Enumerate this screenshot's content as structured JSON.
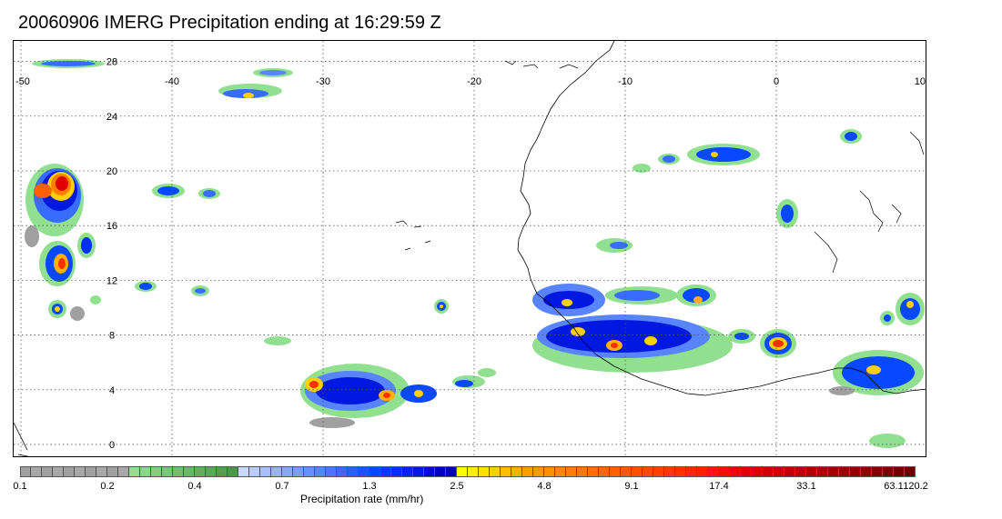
{
  "title": "20060906 IMERG Precipitation ending at 16:29:59 Z",
  "map": {
    "lon_range": [
      -50,
      10
    ],
    "lat_range": [
      -1,
      29.5
    ],
    "lon_ticks": [
      {
        "value": -50,
        "label": "-50"
      },
      {
        "value": -40,
        "label": "-40"
      },
      {
        "value": -30,
        "label": "-30"
      },
      {
        "value": -20,
        "label": "-20"
      },
      {
        "value": -10,
        "label": "-10"
      },
      {
        "value": 0,
        "label": "0"
      },
      {
        "value": 10,
        "label": "10"
      }
    ],
    "lat_ticks": [
      {
        "value": 0,
        "label": "0"
      },
      {
        "value": 4,
        "label": "4"
      },
      {
        "value": 8,
        "label": "8"
      },
      {
        "value": 12,
        "label": "12"
      },
      {
        "value": 16,
        "label": "16"
      },
      {
        "value": 20,
        "label": "20"
      },
      {
        "value": 24,
        "label": "24"
      },
      {
        "value": 28,
        "label": "28"
      }
    ],
    "grid": true,
    "coastline_color": "#000000",
    "grid_color": "#555555"
  },
  "colorbar": {
    "title": "Precipitation rate (mm/hr)",
    "colors": [
      "#a0a0a0",
      "#a8a8a8",
      "#a0a0a0",
      "#a8a8a8",
      "#a0a0a0",
      "#a8a8a8",
      "#a0a0a0",
      "#a8a8a8",
      "#a0a0a0",
      "#a8a8a8",
      "#90e090",
      "#88d888",
      "#80d080",
      "#78c878",
      "#70c070",
      "#68b868",
      "#60b060",
      "#58a858",
      "#50a050",
      "#489848",
      "#c8d8ff",
      "#b8ccff",
      "#a8c0ff",
      "#98b4ff",
      "#88a8ff",
      "#789cff",
      "#6890ff",
      "#5884ff",
      "#4878ff",
      "#386cff",
      "#2860ff",
      "#1854ff",
      "#0848ff",
      "#003cff",
      "#0030ff",
      "#0024f0",
      "#0018e0",
      "#000cd0",
      "#0000c0",
      "#0000b0",
      "#ffff00",
      "#fff000",
      "#ffe000",
      "#ffd000",
      "#ffc000",
      "#ffb000",
      "#ffa000",
      "#ff9800",
      "#ff9000",
      "#ff8800",
      "#ff8000",
      "#ff7800",
      "#ff7000",
      "#ff6800",
      "#ff6000",
      "#ff5800",
      "#ff5000",
      "#ff4800",
      "#ff4000",
      "#ff3800",
      "#ff3000",
      "#ff2800",
      "#ff2000",
      "#f81800",
      "#f01000",
      "#e80800",
      "#e00000",
      "#d80000",
      "#d00000",
      "#c80000",
      "#c00000",
      "#b80000",
      "#b00000",
      "#a80000",
      "#a00000",
      "#980000",
      "#900000",
      "#880000",
      "#800000",
      "#780000",
      "#700000",
      "#680000"
    ],
    "tick_labels": [
      {
        "index": 0,
        "label": "0.1"
      },
      {
        "index": 8,
        "label": "0.2"
      },
      {
        "index": 16,
        "label": "0.4"
      },
      {
        "index": 24,
        "label": "0.7"
      },
      {
        "index": 32,
        "label": "1.3"
      },
      {
        "index": 40,
        "label": "2.5"
      },
      {
        "index": 48,
        "label": "4.8"
      },
      {
        "index": 56,
        "label": "9.1"
      },
      {
        "index": 64,
        "label": "17.4"
      },
      {
        "index": 72,
        "label": "33.1"
      },
      {
        "index": 80,
        "label": "63.1"
      },
      {
        "index": 82,
        "label": "120.2"
      }
    ]
  }
}
